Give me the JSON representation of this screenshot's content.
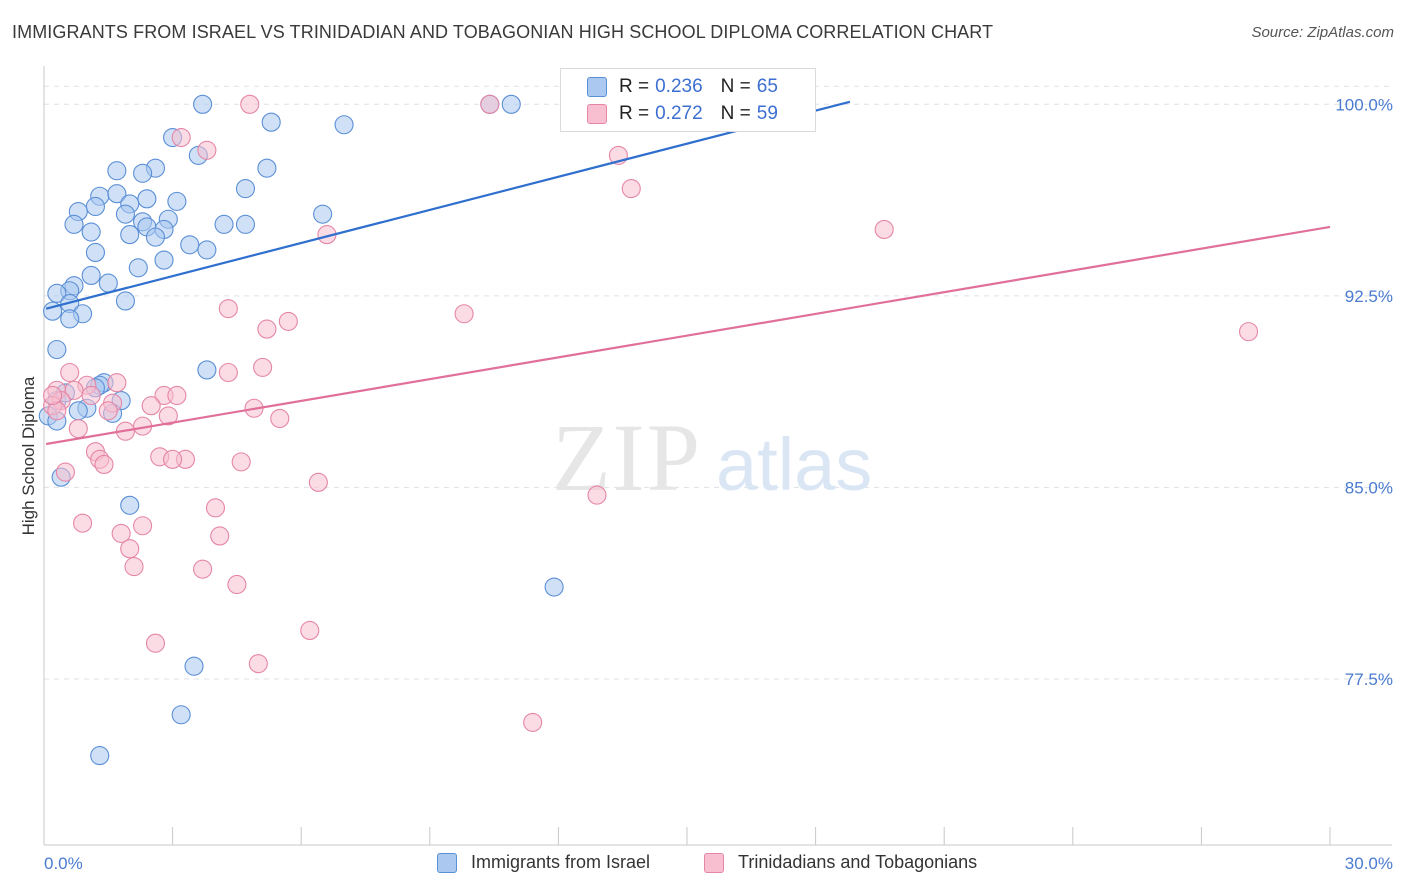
{
  "title": "IMMIGRANTS FROM ISRAEL VS TRINIDADIAN AND TOBAGONIAN HIGH SCHOOL DIPLOMA CORRELATION CHART",
  "source": "Source: ZipAtlas.com",
  "watermark": {
    "zip": "ZIP",
    "atlas": "atlas"
  },
  "legend_box": {
    "rows": [
      {
        "r_label": "R =",
        "r_value": "0.236",
        "n_label": "N =",
        "n_value": "65"
      },
      {
        "r_label": "R =",
        "r_value": "0.272",
        "n_label": "N =",
        "n_value": "59"
      }
    ]
  },
  "bottom_legend": [
    "Immigrants from Israel",
    "Trinidadians and Tobagonians"
  ],
  "colors": {
    "blue_fill": "#aac8f0",
    "blue_stroke": "#5b8fd6",
    "blue_line": "#2f6fce",
    "pink_fill": "#f7bfd0",
    "pink_stroke": "#e586a6",
    "pink_line": "#e0709a",
    "grid": "#dde1e8",
    "tick_text": "#4a7bd0"
  },
  "chart_data": {
    "type": "scatter",
    "title": "IMMIGRANTS FROM ISRAEL VS TRINIDADIAN AND TOBAGONIAN HIGH SCHOOL DIPLOMA CORRELATION CHART",
    "xlabel": "",
    "ylabel": "High School Diploma",
    "xlim": [
      0,
      30
    ],
    "ylim": [
      71.0,
      101.5
    ],
    "x_tick_labels": [
      "0.0%",
      "30.0%"
    ],
    "y_ticks": [
      77.5,
      85.0,
      92.5,
      100.0
    ],
    "y_tick_labels": [
      "77.5%",
      "85.0%",
      "92.5%",
      "100.0%"
    ],
    "series": [
      {
        "name": "Immigrants from Israel",
        "color": "blue",
        "trend": {
          "x": [
            0.05,
            18.8
          ],
          "y": [
            92.0,
            100.1
          ]
        },
        "points": [
          [
            3.7,
            100.0
          ],
          [
            10.4,
            100.0
          ],
          [
            10.9,
            100.0
          ],
          [
            5.3,
            99.3
          ],
          [
            7.0,
            99.2
          ],
          [
            3.0,
            98.7
          ],
          [
            3.6,
            98.0
          ],
          [
            2.6,
            97.5
          ],
          [
            5.2,
            97.5
          ],
          [
            1.7,
            97.4
          ],
          [
            4.7,
            96.7
          ],
          [
            1.3,
            96.4
          ],
          [
            1.7,
            96.5
          ],
          [
            2.4,
            96.3
          ],
          [
            3.1,
            96.2
          ],
          [
            2.0,
            96.1
          ],
          [
            1.2,
            96.0
          ],
          [
            0.8,
            95.8
          ],
          [
            1.9,
            95.7
          ],
          [
            6.5,
            95.7
          ],
          [
            2.3,
            95.4
          ],
          [
            2.9,
            95.5
          ],
          [
            4.2,
            95.3
          ],
          [
            0.7,
            95.3
          ],
          [
            4.7,
            95.3
          ],
          [
            2.4,
            95.2
          ],
          [
            1.1,
            95.0
          ],
          [
            2.8,
            95.1
          ],
          [
            2.0,
            94.9
          ],
          [
            2.6,
            94.8
          ],
          [
            3.4,
            94.5
          ],
          [
            3.8,
            94.3
          ],
          [
            1.2,
            94.2
          ],
          [
            2.8,
            93.9
          ],
          [
            2.2,
            93.6
          ],
          [
            1.1,
            93.3
          ],
          [
            1.5,
            93.0
          ],
          [
            0.7,
            92.9
          ],
          [
            0.6,
            92.7
          ],
          [
            0.3,
            92.6
          ],
          [
            1.9,
            92.3
          ],
          [
            0.6,
            92.2
          ],
          [
            0.2,
            91.9
          ],
          [
            0.9,
            91.8
          ],
          [
            0.6,
            91.6
          ],
          [
            0.3,
            90.4
          ],
          [
            3.8,
            89.6
          ],
          [
            1.4,
            89.1
          ],
          [
            1.3,
            89.0
          ],
          [
            0.3,
            88.4
          ],
          [
            1.8,
            88.4
          ],
          [
            1.0,
            88.1
          ],
          [
            1.6,
            87.9
          ],
          [
            0.1,
            87.8
          ],
          [
            0.3,
            87.6
          ],
          [
            0.4,
            85.4
          ],
          [
            2.0,
            84.3
          ],
          [
            11.9,
            81.1
          ],
          [
            3.5,
            78.0
          ],
          [
            3.2,
            76.1
          ],
          [
            1.3,
            74.5
          ],
          [
            0.8,
            88.0
          ],
          [
            1.2,
            88.9
          ],
          [
            0.5,
            88.7
          ],
          [
            2.3,
            97.3
          ]
        ]
      },
      {
        "name": "Trinidadians and Tobagonians",
        "color": "pink",
        "trend": {
          "x": [
            0.05,
            30.0
          ],
          "y": [
            86.7,
            95.2
          ]
        },
        "points": [
          [
            4.8,
            100.0
          ],
          [
            10.4,
            100.0
          ],
          [
            3.2,
            98.7
          ],
          [
            3.8,
            98.2
          ],
          [
            13.4,
            98.0
          ],
          [
            13.7,
            96.7
          ],
          [
            19.6,
            95.1
          ],
          [
            6.6,
            94.9
          ],
          [
            4.3,
            92.0
          ],
          [
            9.8,
            91.8
          ],
          [
            5.7,
            91.5
          ],
          [
            5.2,
            91.2
          ],
          [
            28.1,
            91.1
          ],
          [
            5.1,
            89.7
          ],
          [
            4.3,
            89.5
          ],
          [
            0.6,
            89.5
          ],
          [
            1.7,
            89.1
          ],
          [
            1.0,
            89.0
          ],
          [
            0.3,
            88.8
          ],
          [
            0.7,
            88.8
          ],
          [
            1.1,
            88.6
          ],
          [
            2.8,
            88.6
          ],
          [
            3.1,
            88.6
          ],
          [
            0.4,
            88.4
          ],
          [
            1.6,
            88.3
          ],
          [
            2.5,
            88.2
          ],
          [
            0.2,
            88.2
          ],
          [
            4.9,
            88.1
          ],
          [
            0.3,
            88.0
          ],
          [
            1.5,
            88.0
          ],
          [
            2.9,
            87.8
          ],
          [
            5.5,
            87.7
          ],
          [
            2.3,
            87.4
          ],
          [
            0.8,
            87.3
          ],
          [
            1.9,
            87.2
          ],
          [
            1.2,
            86.4
          ],
          [
            2.7,
            86.2
          ],
          [
            3.3,
            86.1
          ],
          [
            3.0,
            86.1
          ],
          [
            1.3,
            86.1
          ],
          [
            4.6,
            86.0
          ],
          [
            1.4,
            85.9
          ],
          [
            0.5,
            85.6
          ],
          [
            6.4,
            85.2
          ],
          [
            12.9,
            84.7
          ],
          [
            4.0,
            84.2
          ],
          [
            0.9,
            83.6
          ],
          [
            2.3,
            83.5
          ],
          [
            1.8,
            83.2
          ],
          [
            4.1,
            83.1
          ],
          [
            2.0,
            82.6
          ],
          [
            2.1,
            81.9
          ],
          [
            3.7,
            81.8
          ],
          [
            4.5,
            81.2
          ],
          [
            6.2,
            79.4
          ],
          [
            2.6,
            78.9
          ],
          [
            5.0,
            78.1
          ],
          [
            11.4,
            75.8
          ],
          [
            0.2,
            88.6
          ]
        ]
      }
    ]
  }
}
